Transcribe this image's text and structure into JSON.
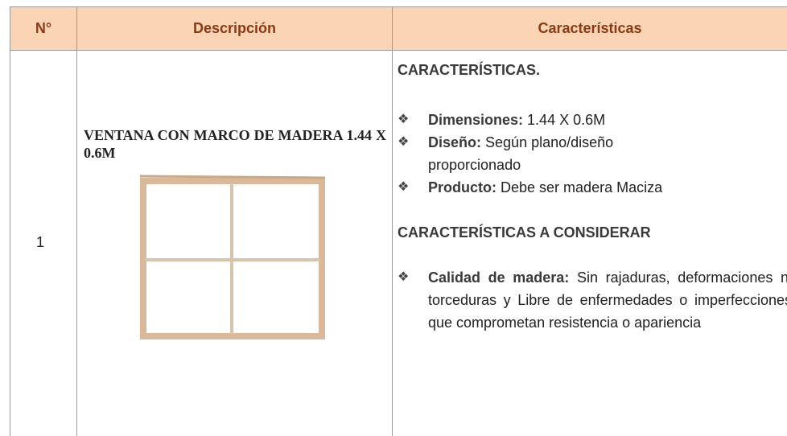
{
  "table": {
    "headers": [
      "N°",
      "Descripción",
      "Características"
    ],
    "rows": [
      {
        "number": "1",
        "description": "VENTANA CON MARCO DE MADERA 1.44 X 0.6M",
        "features": {
          "heading": "CARACTERÍSTICAS.",
          "items": [
            {
              "label": "Dimensiones:",
              "text": "1.44 X 0.6M"
            },
            {
              "label": "Diseño:",
              "text": "Según plano/diseño proporcionado"
            },
            {
              "label": "Producto:",
              "text": "Debe ser madera Maciza"
            }
          ],
          "heading2": "CARACTERÍSTICAS A CONSIDERAR",
          "items2": [
            {
              "label": "Calidad de madera:",
              "text": "Sin rajaduras, deformaciones ni torceduras y Libre de enfermedades o imperfecciones que comprometan resistencia o apariencia"
            }
          ]
        }
      }
    ]
  }
}
